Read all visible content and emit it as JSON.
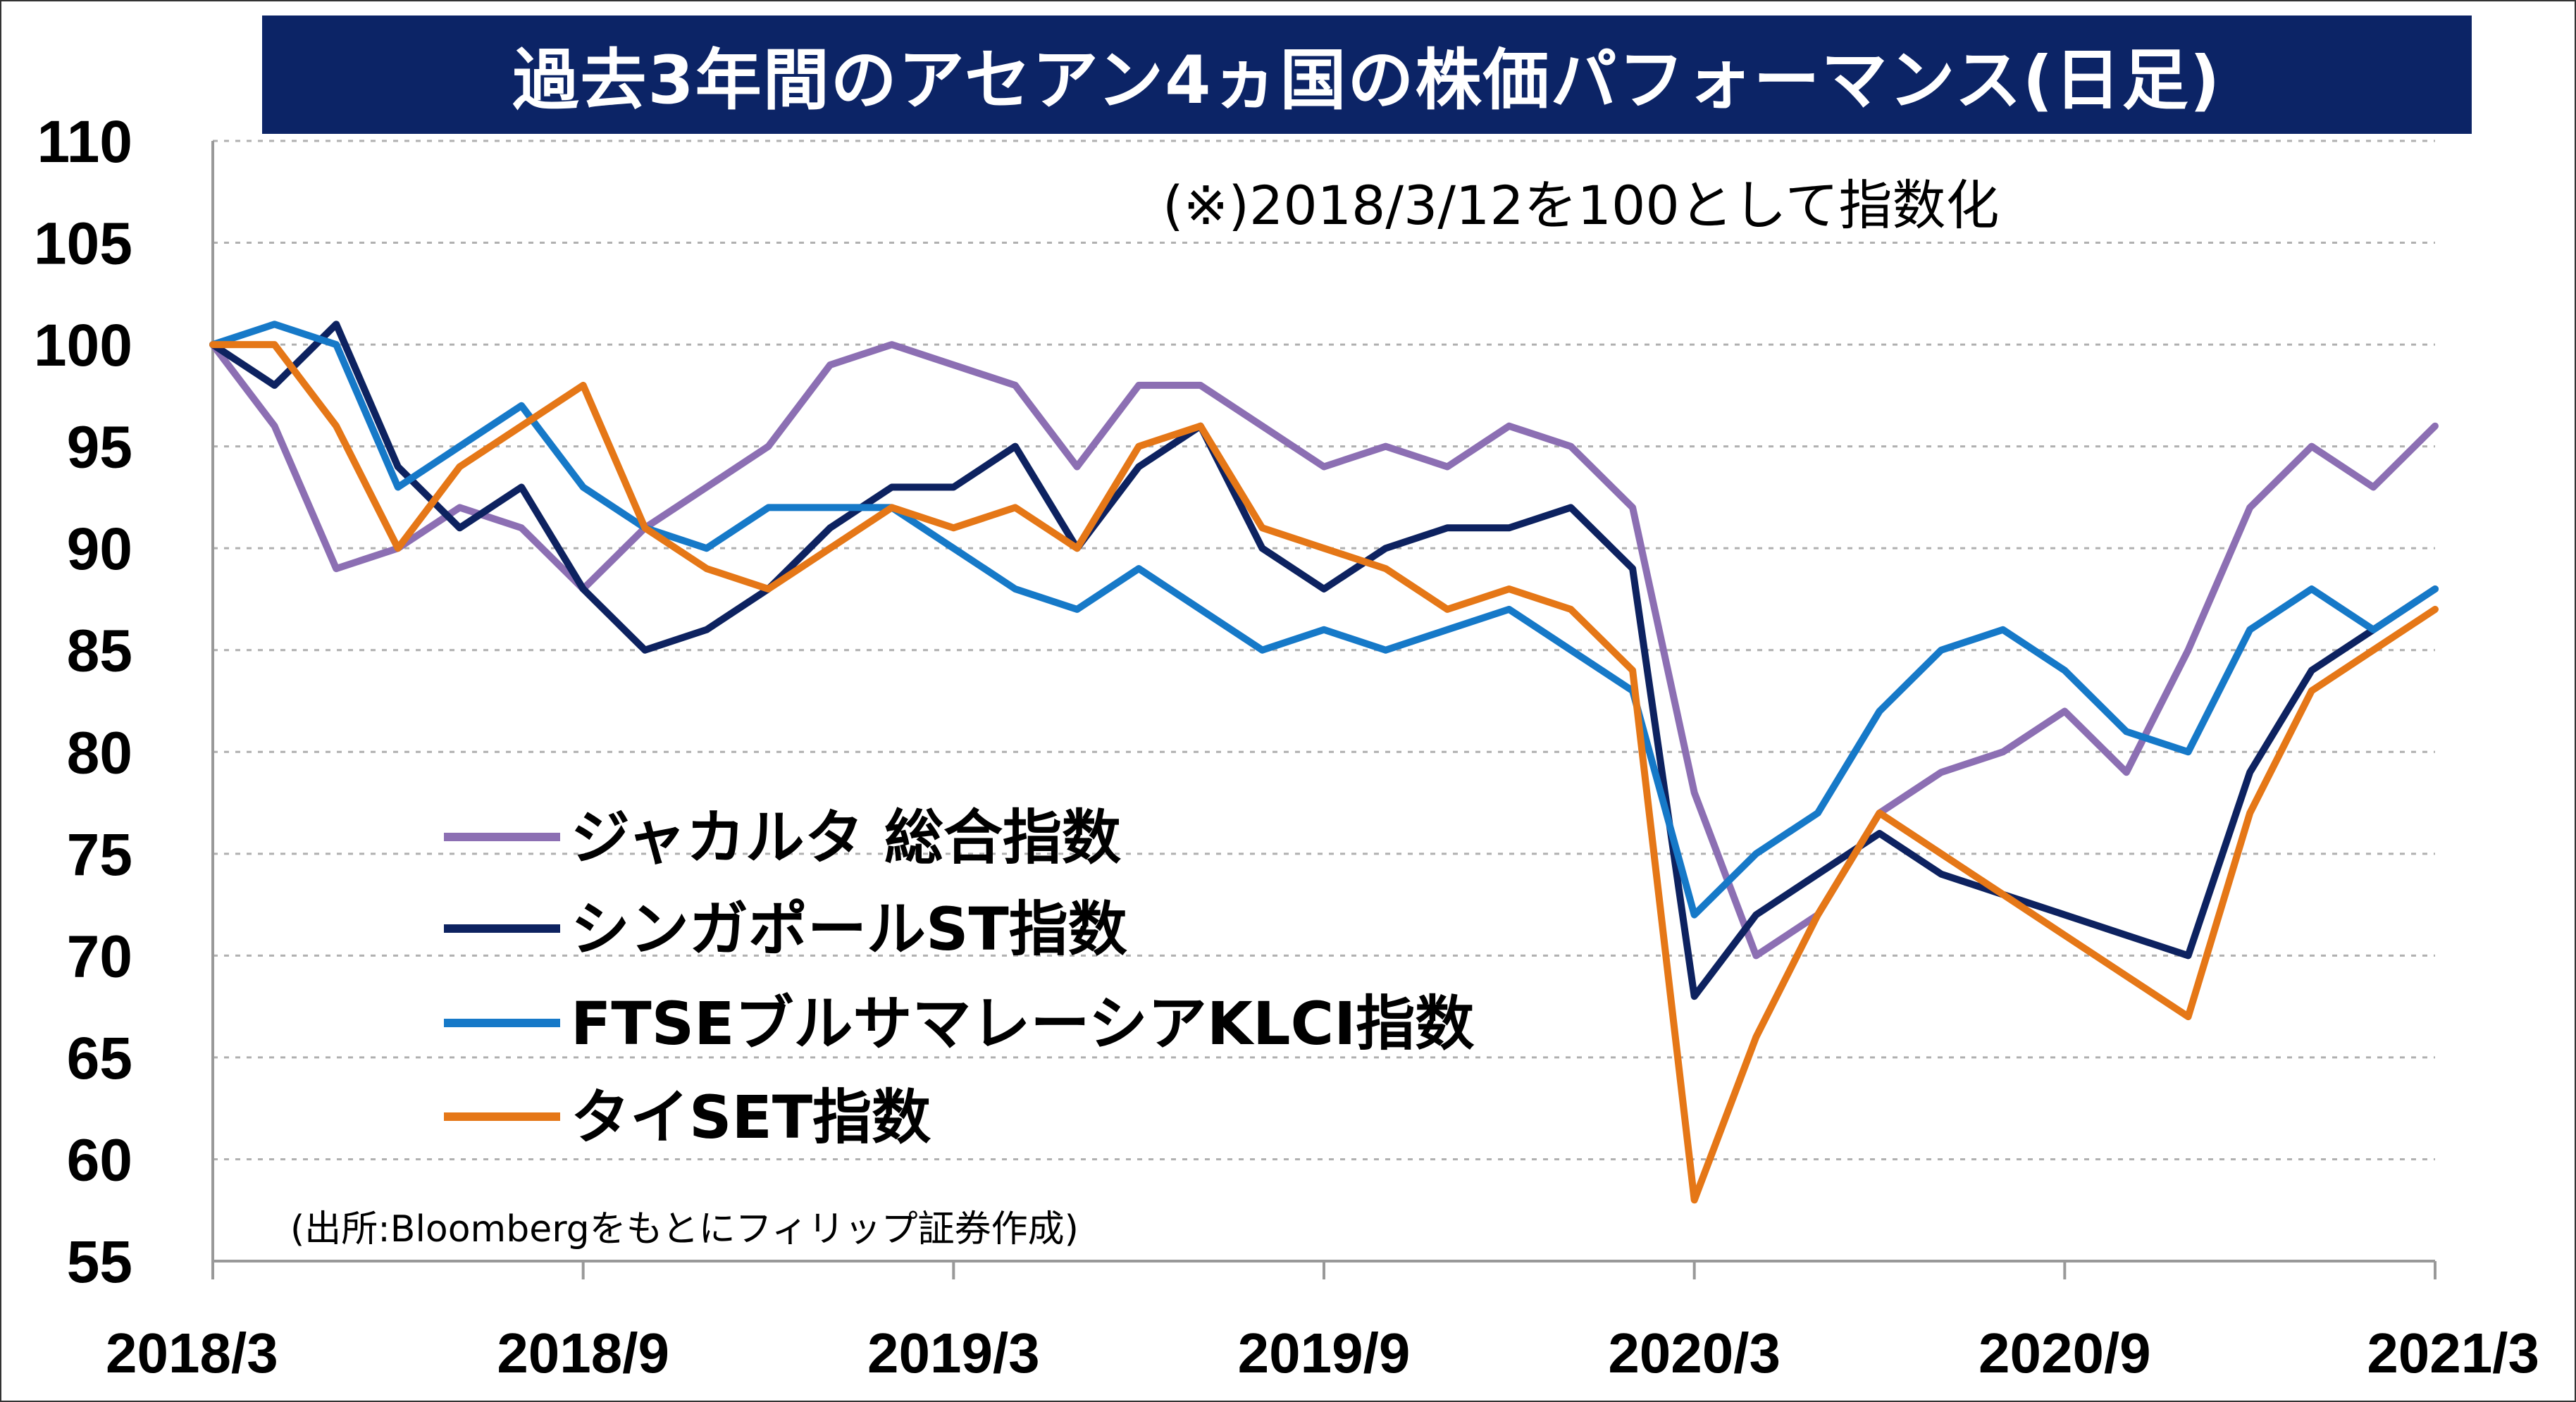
{
  "title": "過去3年間のアセアン4ヵ国の株価パフォーマンス(日足)",
  "note": "(※)2018/3/12を100として指数化",
  "source": "(出所:Bloombergをもとにフィリップ証券作成)",
  "colors": {
    "title_bg": "#0c2466",
    "jakarta": "#8c6fb3",
    "singapore": "#0d2260",
    "malaysia": "#1679c8",
    "thailand": "#e57717",
    "grid": "#b0b0b0"
  },
  "chart_data": {
    "type": "line",
    "title": "過去3年間のアセアン4ヵ国の株価パフォーマンス(日足)",
    "xlabel": "",
    "ylabel": "",
    "ylim": [
      55,
      110
    ],
    "yticks": [
      "110",
      "105",
      "100",
      "95",
      "90",
      "85",
      "80",
      "75",
      "70",
      "65",
      "60",
      "55"
    ],
    "xticks": [
      "2018/3",
      "2018/9",
      "2019/3",
      "2019/9",
      "2020/3",
      "2020/9",
      "2021/3"
    ],
    "grid": true,
    "legend_position": "lower-left",
    "x": [
      "2018/3",
      "2018/4",
      "2018/5",
      "2018/6",
      "2018/7",
      "2018/8",
      "2018/9",
      "2018/10",
      "2018/11",
      "2018/12",
      "2019/1",
      "2019/2",
      "2019/3",
      "2019/4",
      "2019/5",
      "2019/6",
      "2019/7",
      "2019/8",
      "2019/9",
      "2019/10",
      "2019/11",
      "2019/12",
      "2020/1",
      "2020/2",
      "2020/3",
      "2020/4",
      "2020/5",
      "2020/6",
      "2020/7",
      "2020/8",
      "2020/9",
      "2020/10",
      "2020/11",
      "2020/12",
      "2021/1",
      "2021/2",
      "2021/3"
    ],
    "series": [
      {
        "name": "ジャカルタ 総合指数",
        "color": "#8c6fb3",
        "values": [
          100,
          96,
          89,
          90,
          92,
          91,
          88,
          91,
          93,
          95,
          99,
          100,
          99,
          98,
          94,
          98,
          98,
          96,
          94,
          95,
          94,
          96,
          95,
          92,
          78,
          70,
          72,
          77,
          79,
          80,
          82,
          79,
          85,
          92,
          95,
          93,
          96
        ]
      },
      {
        "name": "シンガポールST指数",
        "color": "#0d2260",
        "values": [
          100,
          98,
          101,
          94,
          91,
          93,
          88,
          85,
          86,
          88,
          91,
          93,
          93,
          95,
          90,
          94,
          96,
          90,
          88,
          90,
          91,
          91,
          92,
          89,
          68,
          72,
          74,
          76,
          74,
          73,
          72,
          71,
          70,
          79,
          84,
          86,
          88
        ]
      },
      {
        "name": "FTSEブルサマレーシアKLCI指数",
        "color": "#1679c8",
        "values": [
          100,
          101,
          100,
          93,
          95,
          97,
          93,
          91,
          90,
          92,
          92,
          92,
          90,
          88,
          87,
          89,
          87,
          85,
          86,
          85,
          86,
          87,
          85,
          83,
          72,
          75,
          77,
          82,
          85,
          86,
          84,
          81,
          80,
          86,
          88,
          86,
          88
        ]
      },
      {
        "name": "タイSET指数",
        "color": "#e57717",
        "values": [
          100,
          100,
          96,
          90,
          94,
          96,
          98,
          91,
          89,
          88,
          90,
          92,
          91,
          92,
          90,
          95,
          96,
          91,
          90,
          89,
          87,
          88,
          87,
          84,
          58,
          66,
          72,
          77,
          75,
          73,
          71,
          69,
          67,
          77,
          83,
          85,
          87
        ]
      }
    ]
  }
}
